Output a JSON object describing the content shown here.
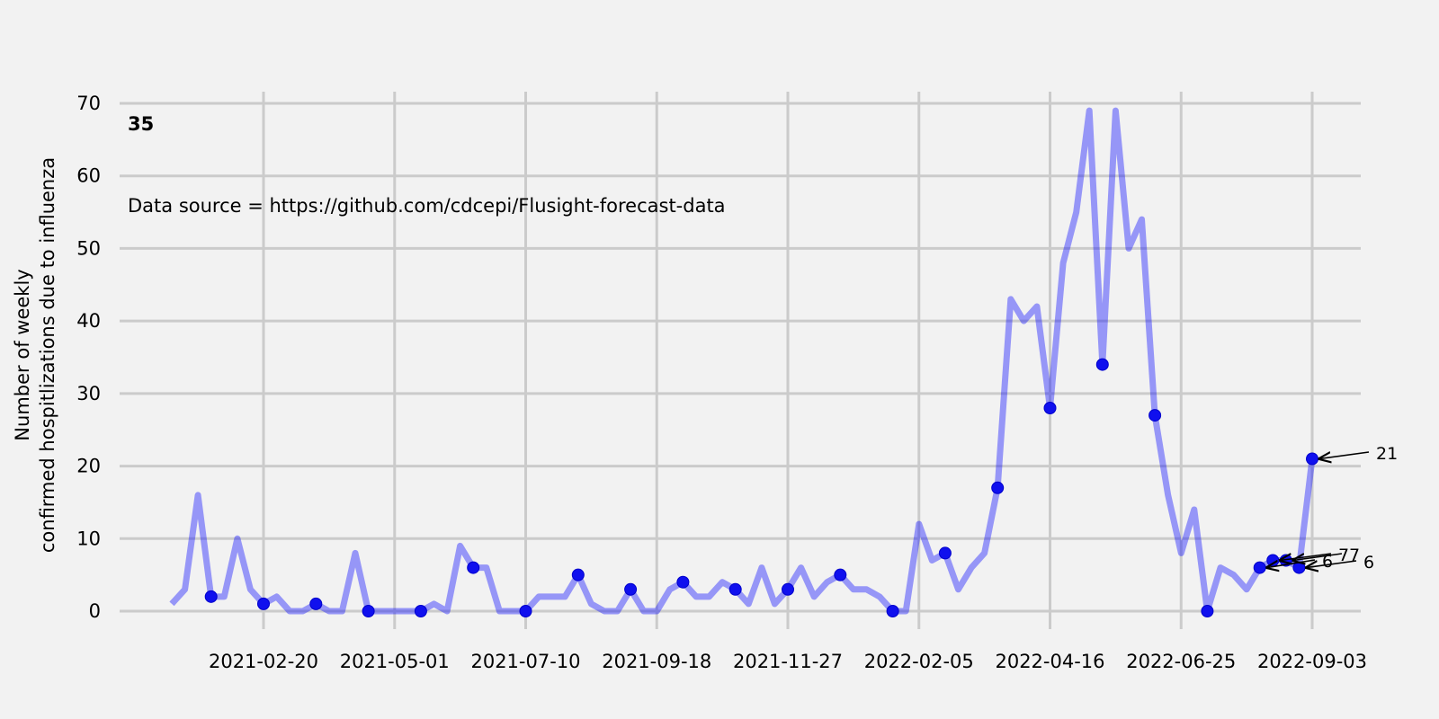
{
  "chart_data": {
    "type": "line",
    "panel_label": "35",
    "source_note": "Data source = https://github.com/cdcepi/Flusight-forecast-data",
    "ylabel_line1": "Number of weekly",
    "ylabel_line2": "confirmed hospitlizations due to influenza",
    "ylim": [
      0,
      70
    ],
    "yticks": [
      0,
      10,
      20,
      30,
      40,
      50,
      60,
      70
    ],
    "xticks": [
      "2021-02-20",
      "2021-05-01",
      "2021-07-10",
      "2021-09-18",
      "2021-11-27",
      "2022-02-05",
      "2022-04-16",
      "2022-06-25",
      "2022-09-03"
    ],
    "grid": true,
    "series": [
      {
        "color": "#0000ff",
        "start_date": "2021-01-02",
        "y": [
          1,
          3,
          16,
          2,
          2,
          10,
          3,
          1,
          2,
          0,
          0,
          1,
          0,
          0,
          8,
          0,
          0,
          0,
          0,
          0,
          1,
          0,
          9,
          6,
          6,
          0,
          0,
          0,
          2,
          2,
          2,
          5,
          1,
          0,
          0,
          3,
          0,
          0,
          3,
          4,
          2,
          2,
          4,
          3,
          1,
          6,
          1,
          3,
          6,
          2,
          4,
          5,
          3,
          3,
          2,
          0,
          0,
          12,
          7,
          8,
          3,
          6,
          8,
          17,
          43,
          40,
          42,
          28,
          48,
          55,
          69,
          34,
          69,
          50,
          54,
          27,
          16,
          8,
          14,
          0,
          6,
          5,
          3,
          6,
          7,
          7,
          6,
          21
        ]
      }
    ],
    "markers": [
      {
        "date": "2021-01-23",
        "y": 2
      },
      {
        "date": "2021-02-20",
        "y": 1
      },
      {
        "date": "2021-03-20",
        "y": 1
      },
      {
        "date": "2021-04-17",
        "y": 0
      },
      {
        "date": "2021-05-15",
        "y": 0
      },
      {
        "date": "2021-06-12",
        "y": 6
      },
      {
        "date": "2021-07-10",
        "y": 0
      },
      {
        "date": "2021-08-07",
        "y": 5
      },
      {
        "date": "2021-09-04",
        "y": 3
      },
      {
        "date": "2021-10-02",
        "y": 4
      },
      {
        "date": "2021-10-30",
        "y": 3
      },
      {
        "date": "2021-11-27",
        "y": 3
      },
      {
        "date": "2021-12-25",
        "y": 5
      },
      {
        "date": "2022-01-22",
        "y": 0
      },
      {
        "date": "2022-02-19",
        "y": 8
      },
      {
        "date": "2022-03-19",
        "y": 17
      },
      {
        "date": "2022-04-16",
        "y": 28
      },
      {
        "date": "2022-05-14",
        "y": 34
      },
      {
        "date": "2022-06-11",
        "y": 27
      },
      {
        "date": "2022-07-09",
        "y": 0
      },
      {
        "date": "2022-08-06",
        "y": 6
      },
      {
        "date": "2022-08-13",
        "y": 7
      },
      {
        "date": "2022-08-20",
        "y": 7
      },
      {
        "date": "2022-08-27",
        "y": 6
      },
      {
        "date": "2022-09-03",
        "y": 21
      }
    ],
    "annotations": [
      {
        "text": "21",
        "date": "2022-09-03",
        "y": 21
      },
      {
        "text": "6",
        "date": "2022-08-06",
        "y": 6
      },
      {
        "text": "7",
        "date": "2022-08-13",
        "y": 7
      },
      {
        "text": "7",
        "date": "2022-08-20",
        "y": 7
      },
      {
        "text": "6",
        "date": "2022-08-27",
        "y": 6
      }
    ]
  }
}
